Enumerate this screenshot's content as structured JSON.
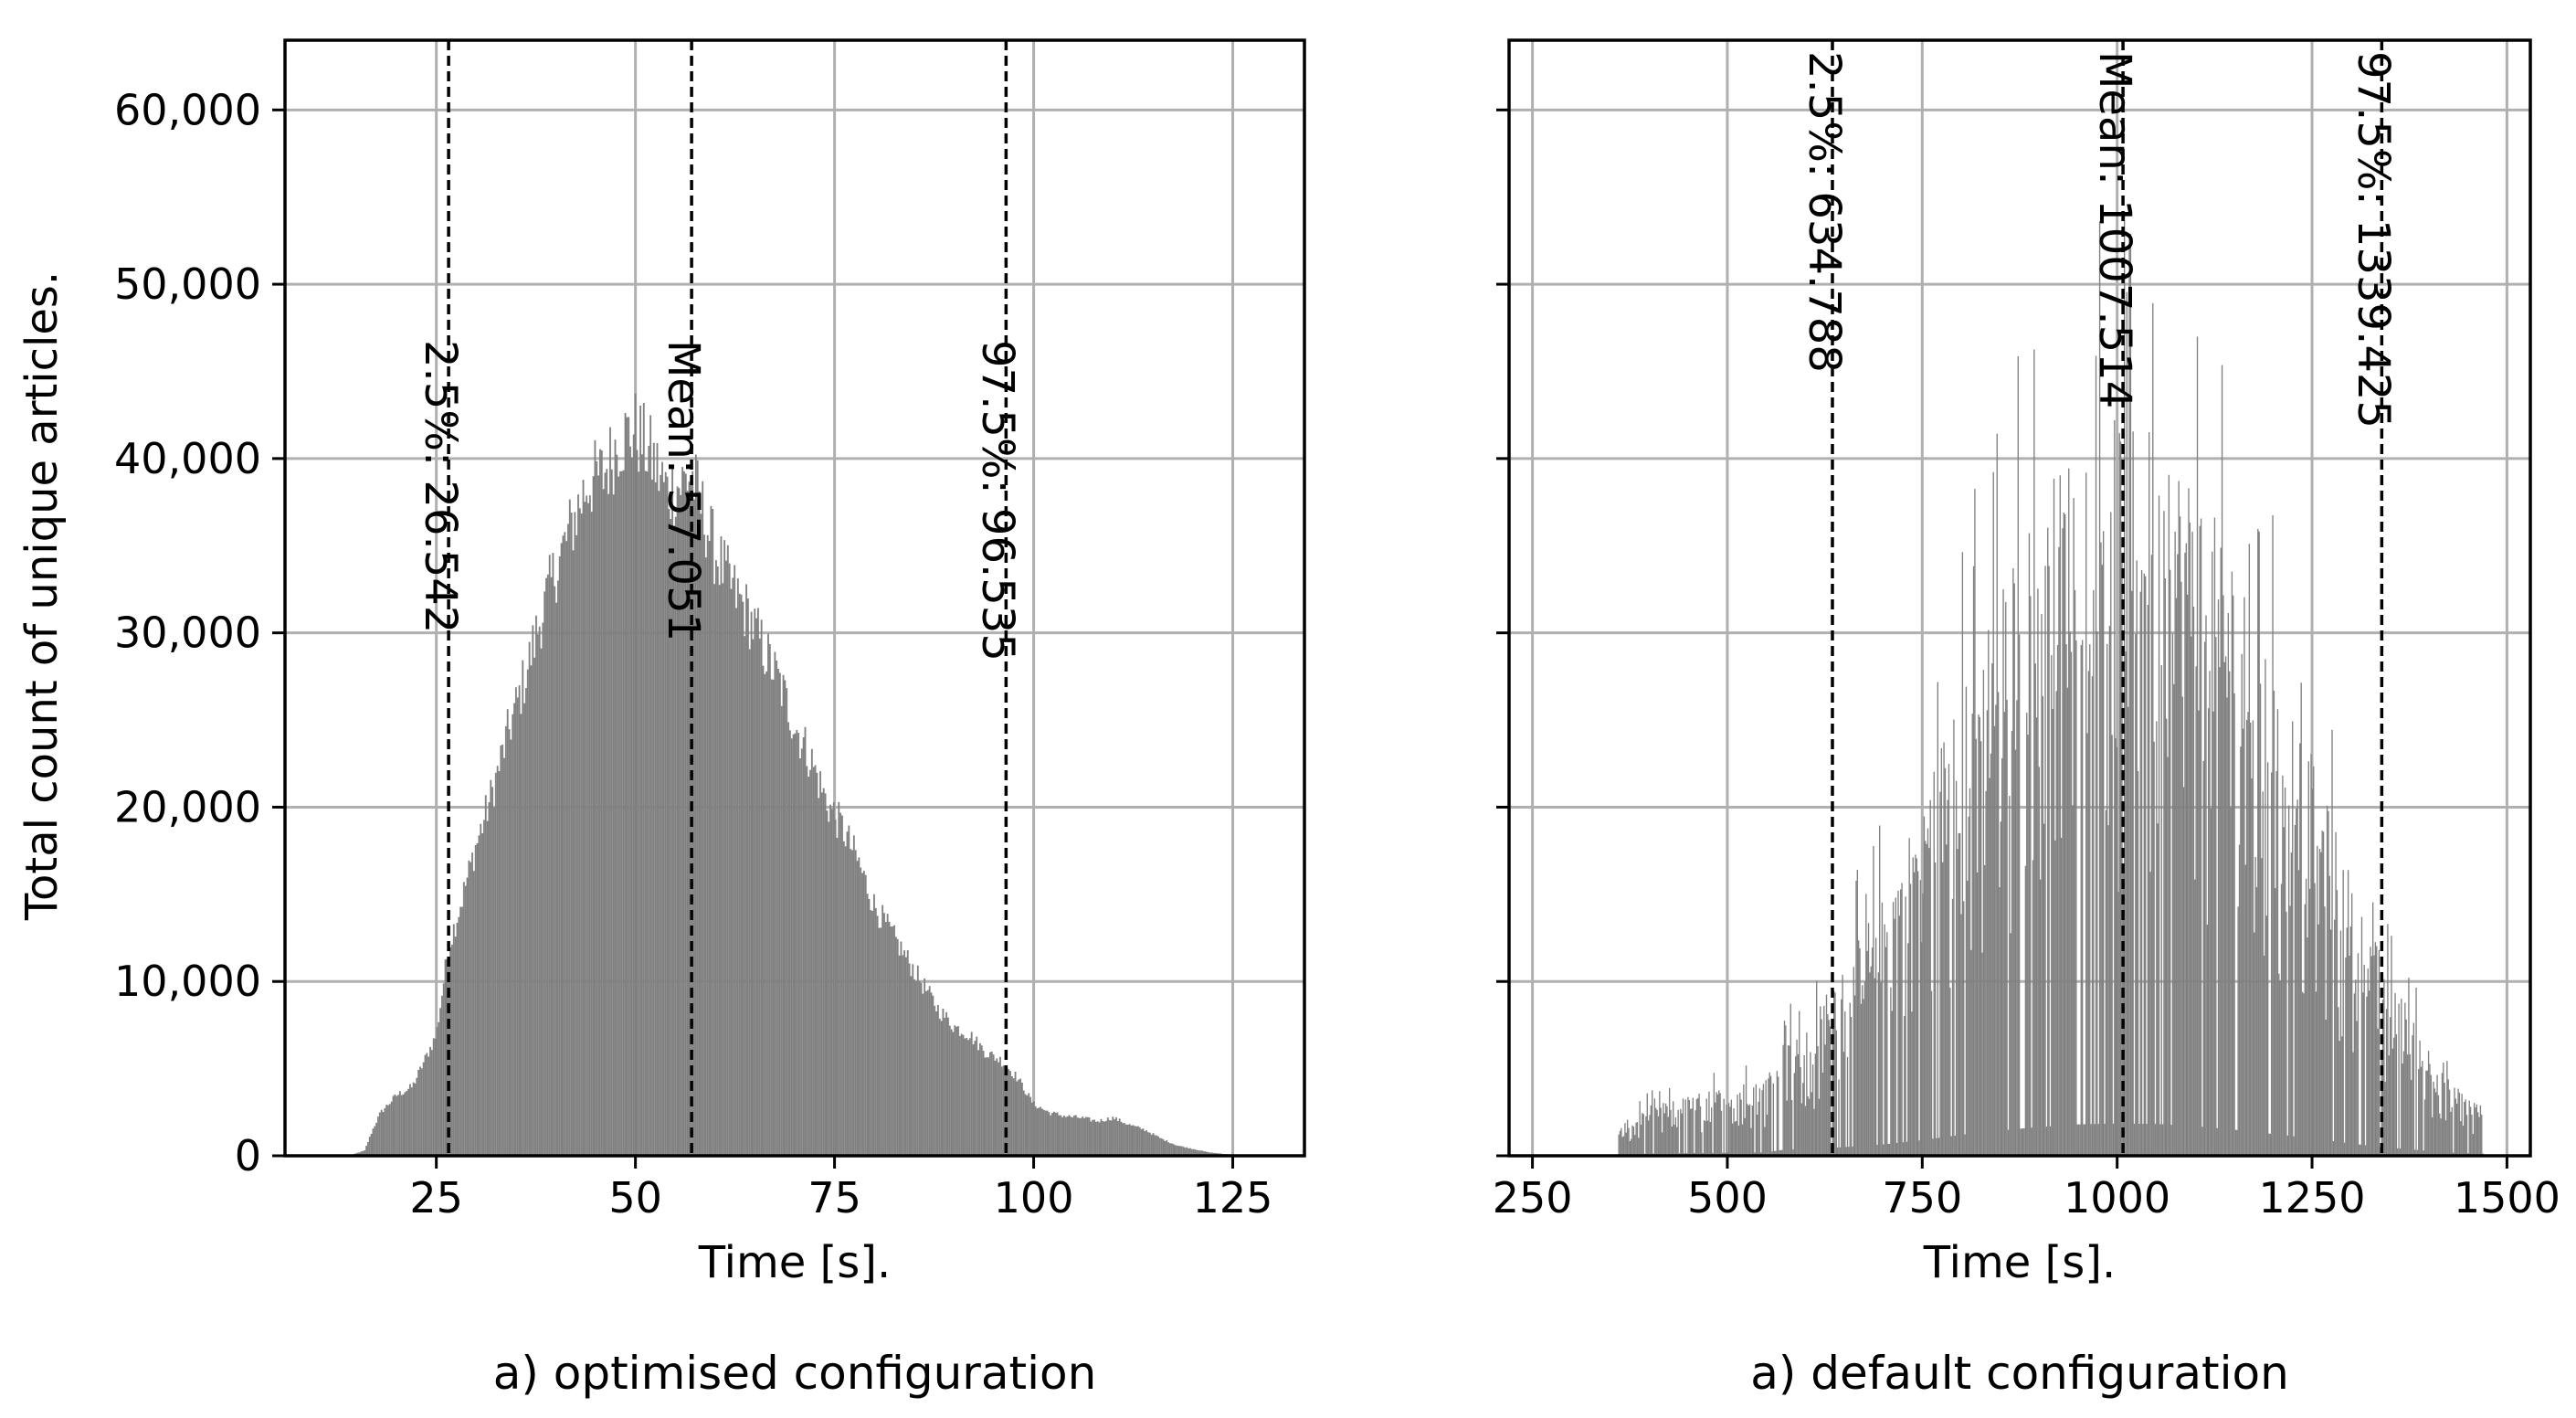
{
  "figure": {
    "y_axis_label": "Total count of unique articles."
  },
  "chart_data": [
    {
      "type": "histogram",
      "caption": "a) optimised configuration",
      "xlabel": "Time [s].",
      "ylabel": "Total count of unique articles.",
      "xlim": [
        6,
        134
      ],
      "ylim": [
        0,
        64000
      ],
      "xticks": [
        25,
        50,
        75,
        100,
        125
      ],
      "xtick_labels": [
        "25",
        "50",
        "75",
        "100",
        "125"
      ],
      "yticks": [
        0,
        10000,
        20000,
        30000,
        40000,
        50000,
        60000
      ],
      "ytick_labels": [
        "0",
        "10,000",
        "20,000",
        "30,000",
        "40,000",
        "50,000",
        "60,000"
      ],
      "grid": true,
      "bar_color": "#808080",
      "histogram_profile": {
        "x": [
          14,
          16,
          17,
          18,
          20,
          22,
          24,
          25,
          26.5,
          28,
          30,
          32,
          34,
          36,
          38,
          40,
          42,
          44,
          46,
          48,
          50,
          52,
          54,
          56,
          57,
          58,
          60,
          62,
          64,
          66,
          68,
          70,
          72,
          74,
          76,
          78,
          80,
          82,
          84,
          86,
          88,
          90,
          92,
          94,
          96,
          97,
          98,
          100,
          102,
          104,
          106,
          108,
          110,
          112,
          114,
          116,
          118,
          120,
          122,
          124,
          126,
          128
        ],
        "count": [
          0,
          300,
          1500,
          2500,
          3500,
          4000,
          6000,
          7000,
          12000,
          14500,
          18000,
          21000,
          24500,
          27500,
          31000,
          34000,
          36500,
          39000,
          39500,
          41500,
          42000,
          40500,
          38500,
          39000,
          39500,
          38000,
          35000,
          33000,
          31500,
          29500,
          27500,
          25000,
          23000,
          20500,
          19000,
          17000,
          14500,
          13000,
          11500,
          10000,
          8500,
          7500,
          7000,
          6000,
          5500,
          5000,
          4500,
          3000,
          2500,
          2300,
          2200,
          2000,
          2200,
          1800,
          1500,
          1000,
          600,
          400,
          200,
          100,
          60,
          0
        ]
      },
      "vlines": [
        {
          "x": 26.542,
          "label": "2.5%: 26.542"
        },
        {
          "x": 57.051,
          "label": "Mean: 57.051"
        },
        {
          "x": 96.535,
          "label": "97.5%: 96.535"
        }
      ]
    },
    {
      "type": "histogram",
      "caption": "a) default configuration",
      "xlabel": "Time [s].",
      "ylabel": "",
      "xlim": [
        220,
        1530
      ],
      "ylim": [
        0,
        64000
      ],
      "xticks": [
        250,
        500,
        750,
        1000,
        1250,
        1500
      ],
      "xtick_labels": [
        "250",
        "500",
        "750",
        "1000",
        "1250",
        "1500"
      ],
      "yticks": [
        0,
        10000,
        20000,
        30000,
        40000,
        50000,
        60000
      ],
      "grid": true,
      "bar_color": "#808080",
      "histogram_profile": {
        "x": [
          360,
          400,
          450,
          500,
          550,
          580,
          600,
          630,
          650,
          700,
          750,
          800,
          850,
          900,
          950,
          1000,
          1050,
          1100,
          1150,
          1200,
          1250,
          1300,
          1340,
          1380,
          1420,
          1450,
          1470
        ],
        "count": [
          1500,
          2500,
          3000,
          3500,
          4000,
          8000,
          5000,
          9000,
          10000,
          13000,
          18000,
          24000,
          29000,
          33000,
          36000,
          37000,
          36500,
          34000,
          30000,
          25000,
          20000,
          14000,
          10000,
          7000,
          4000,
          3000,
          2500
        ]
      },
      "vlines": [
        {
          "x": 634.788,
          "label": "2.5%: 634.788"
        },
        {
          "x": 1007.514,
          "label": "Mean: 1007.514"
        },
        {
          "x": 1339.425,
          "label": "97.5%: 1339.425"
        }
      ]
    }
  ]
}
